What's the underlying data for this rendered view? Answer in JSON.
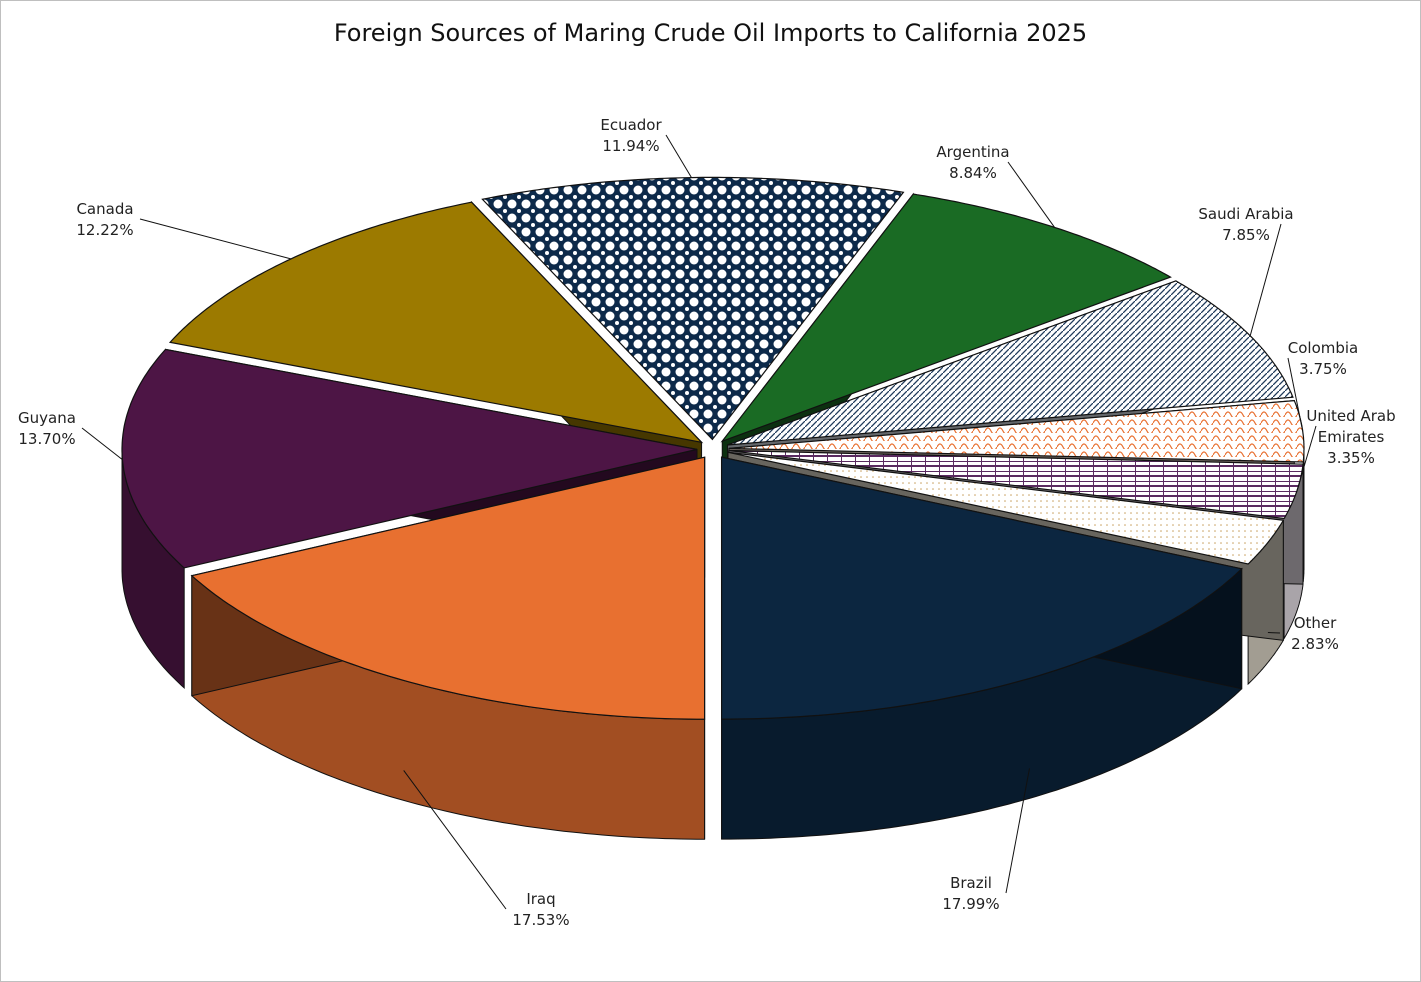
{
  "chart_data": {
    "type": "pie3d",
    "title": "Foreign Sources of Maring Crude Oil Imports to California 2025",
    "categories": [
      "Brazil",
      "Other",
      "United Arab Emirates",
      "Colombia",
      "Saudi Arabia",
      "Argentina",
      "Ecuador",
      "Canada",
      "Guyana",
      "Iraq"
    ],
    "values": [
      17.99,
      2.83,
      3.35,
      3.75,
      7.85,
      8.84,
      11.94,
      12.22,
      13.7,
      17.53
    ],
    "value_labels": [
      "17.99%",
      "2.83%",
      "3.35%",
      "3.75%",
      "7.85%",
      "8.84%",
      "11.94%",
      "12.22%",
      "13.70%",
      "17.53%"
    ],
    "colors": [
      "#0c2640",
      "#e8e0d0",
      "#f2eaf2",
      "#fbe6d8",
      "#dfe5ee",
      "#1a6b24",
      "#0d2a4a",
      "#9c7a00",
      "#4d1545",
      "#e87030"
    ]
  }
}
